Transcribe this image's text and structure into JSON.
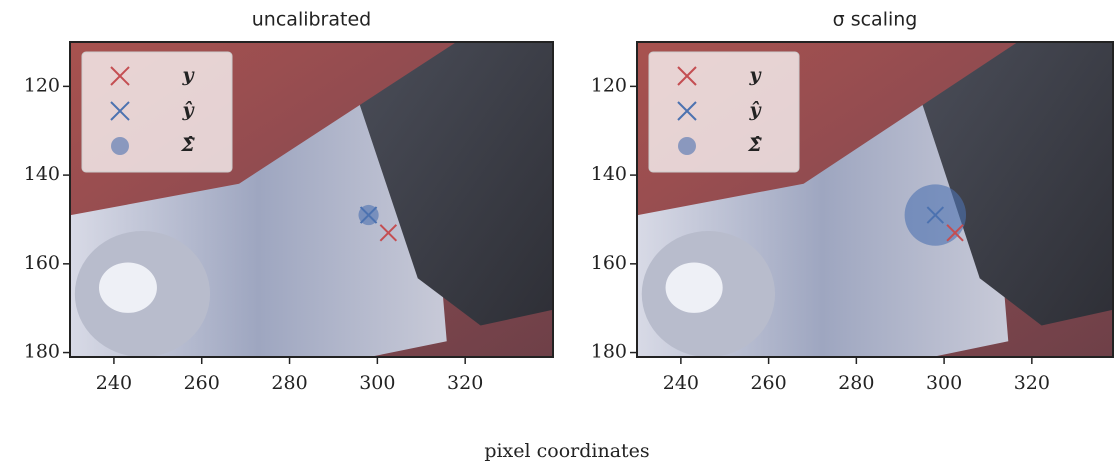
{
  "chart_data": [
    {
      "type": "scatter",
      "title": "uncalibrated",
      "xlim": [
        230,
        340
      ],
      "xticks": [
        240,
        260,
        280,
        300,
        320
      ],
      "ylim": [
        181,
        110
      ],
      "yticks": [
        120,
        140,
        160,
        180
      ],
      "series": [
        {
          "name": "y",
          "color": "#c44e52",
          "marker": "x",
          "x": [
            302.5
          ],
          "y": [
            153
          ]
        },
        {
          "name": "ŷ",
          "color": "#4c72b0",
          "marker": "x",
          "x": [
            298
          ],
          "y": [
            149
          ]
        },
        {
          "name": "Σ̂",
          "color": "#4c72b0",
          "marker": "circle",
          "x": [
            298
          ],
          "y": [
            149
          ],
          "size": [
            2.3
          ]
        }
      ]
    },
    {
      "type": "scatter",
      "title": "σ scaling",
      "xlim": [
        230,
        338.5
      ],
      "xticks": [
        240,
        260,
        280,
        300,
        320
      ],
      "ylim": [
        181,
        110
      ],
      "yticks": [
        120,
        140,
        160,
        180
      ],
      "series": [
        {
          "name": "y",
          "color": "#c44e52",
          "marker": "x",
          "x": [
            302.5
          ],
          "y": [
            153
          ]
        },
        {
          "name": "ŷ",
          "color": "#4c72b0",
          "marker": "x",
          "x": [
            298
          ],
          "y": [
            149
          ]
        },
        {
          "name": "Σ̂",
          "color": "#4c72b0",
          "marker": "circle",
          "x": [
            298
          ],
          "y": [
            149
          ],
          "size": [
            7
          ]
        }
      ]
    }
  ],
  "xlabel": "pixel coordinates"
}
